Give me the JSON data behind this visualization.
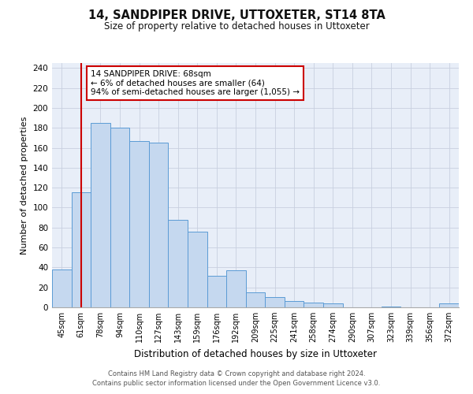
{
  "title": "14, SANDPIPER DRIVE, UTTOXETER, ST14 8TA",
  "subtitle": "Size of property relative to detached houses in Uttoxeter",
  "xlabel": "Distribution of detached houses by size in Uttoxeter",
  "ylabel": "Number of detached properties",
  "bins": [
    "45sqm",
    "61sqm",
    "78sqm",
    "94sqm",
    "110sqm",
    "127sqm",
    "143sqm",
    "159sqm",
    "176sqm",
    "192sqm",
    "209sqm",
    "225sqm",
    "241sqm",
    "258sqm",
    "274sqm",
    "290sqm",
    "307sqm",
    "323sqm",
    "339sqm",
    "356sqm",
    "372sqm"
  ],
  "values": [
    38,
    115,
    185,
    180,
    167,
    165,
    88,
    76,
    32,
    37,
    15,
    10,
    6,
    5,
    4,
    0,
    0,
    1,
    0,
    0,
    4
  ],
  "bar_color": "#c5d8ef",
  "bar_edge_color": "#5b9bd5",
  "bg_color": "#e8eef8",
  "grid_color": "#c8d0df",
  "vline_x_index": 1,
  "vline_color": "#cc0000",
  "annotation_text": "14 SANDPIPER DRIVE: 68sqm\n← 6% of detached houses are smaller (64)\n94% of semi-detached houses are larger (1,055) →",
  "annotation_box_color": "#ffffff",
  "annotation_box_edge_color": "#cc0000",
  "ylim": [
    0,
    245
  ],
  "yticks": [
    0,
    20,
    40,
    60,
    80,
    100,
    120,
    140,
    160,
    180,
    200,
    220,
    240
  ],
  "footer_line1": "Contains HM Land Registry data © Crown copyright and database right 2024.",
  "footer_line2": "Contains public sector information licensed under the Open Government Licence v3.0."
}
